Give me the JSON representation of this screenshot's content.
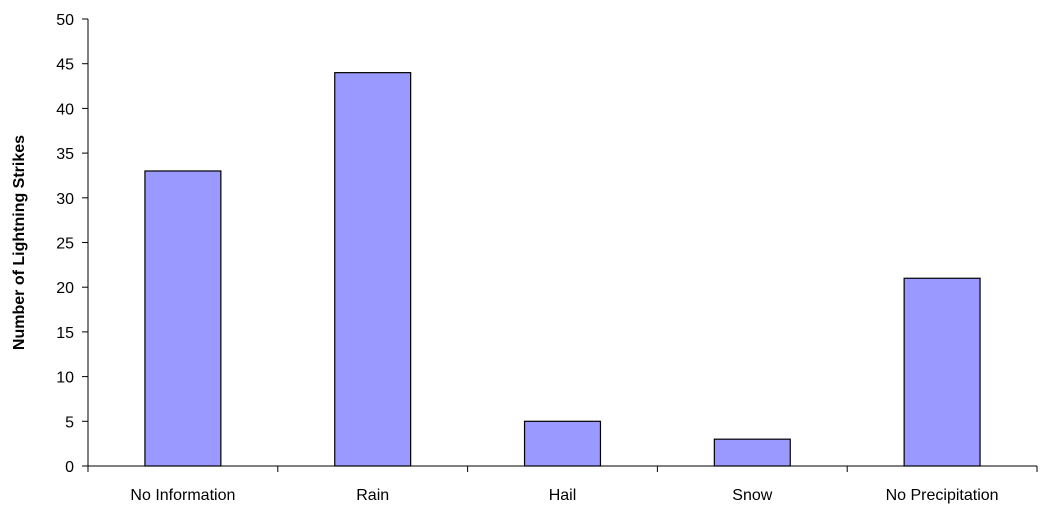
{
  "chart_data": {
    "type": "bar",
    "title": "",
    "xlabel": "",
    "ylabel": "Number of Lightning Strikes",
    "categories": [
      "No Information",
      "Rain",
      "Hail",
      "Snow",
      "No Precipitation"
    ],
    "values": [
      33,
      44,
      5,
      3,
      21
    ],
    "ylim": [
      0,
      50
    ],
    "yticks": [
      0,
      5,
      10,
      15,
      20,
      25,
      30,
      35,
      40,
      45,
      50
    ],
    "grid": false,
    "legend": "none",
    "colors": {
      "bar_fill": "#9999ff",
      "bar_stroke": "#000000",
      "axis": "#000000"
    }
  }
}
